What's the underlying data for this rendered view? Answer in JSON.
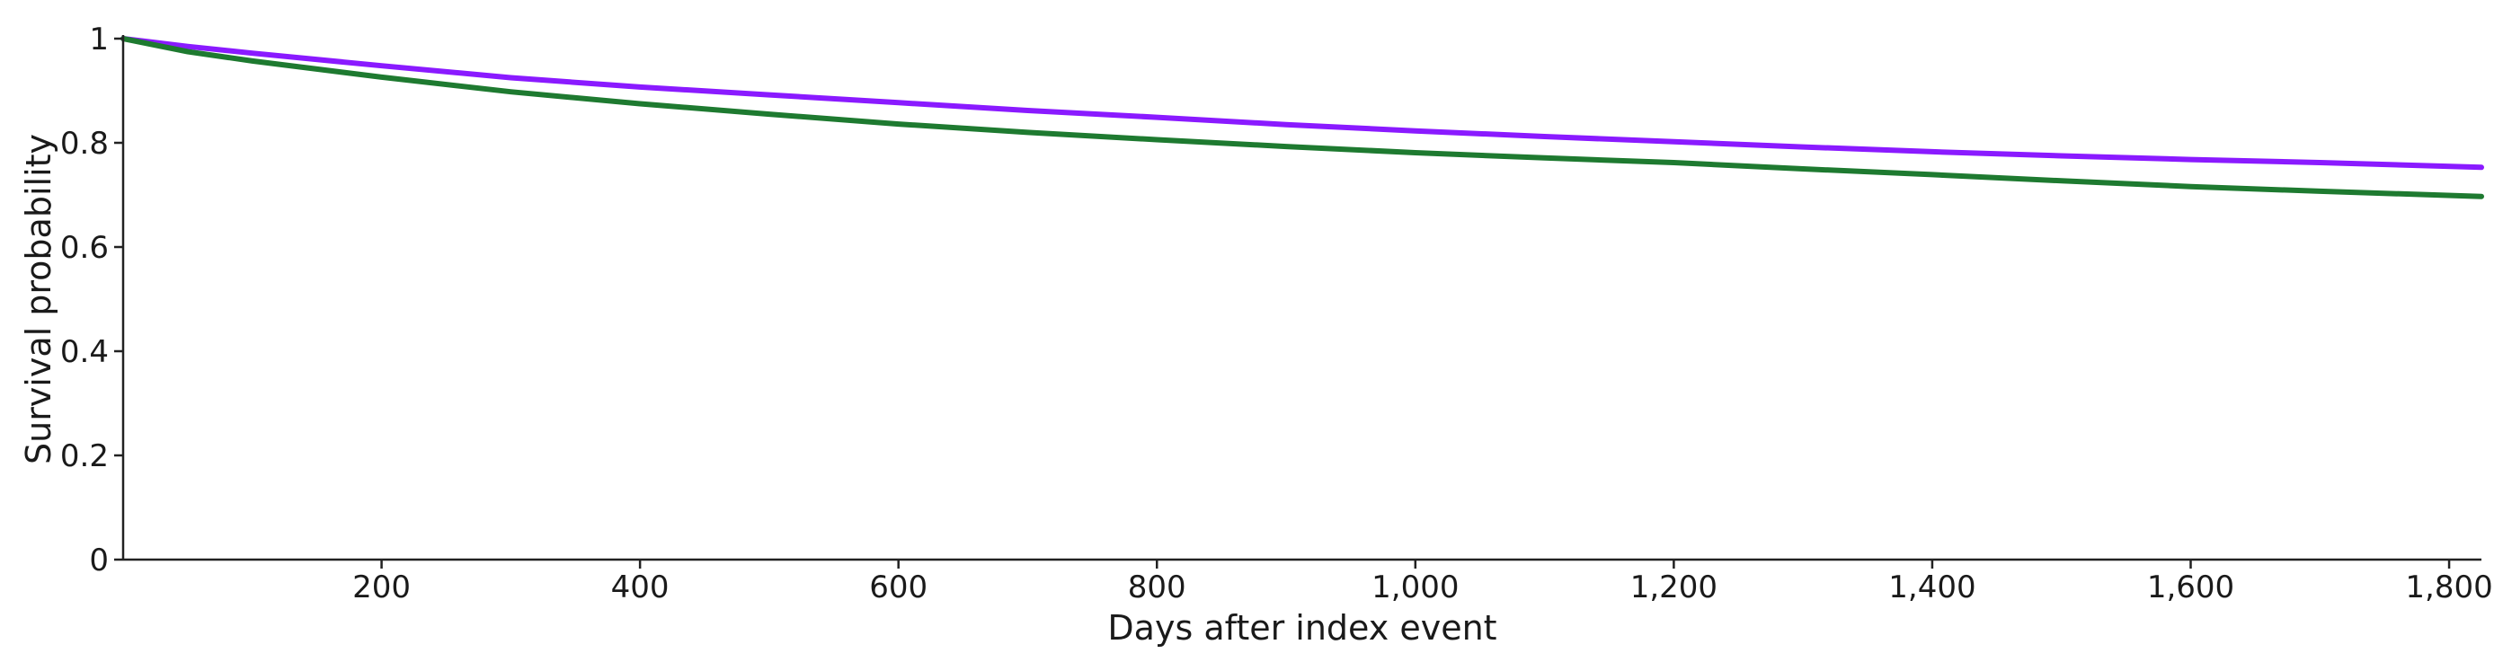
{
  "chart_data": {
    "type": "line",
    "title": "",
    "xlabel": "Days after index event",
    "ylabel": "Survival probability",
    "xlim": [
      0,
      1825
    ],
    "ylim": [
      0,
      1
    ],
    "x_ticks": [
      200,
      400,
      600,
      800,
      1000,
      1200,
      1400,
      1600,
      1800
    ],
    "x_tick_labels": [
      "200",
      "400",
      "600",
      "800",
      "1,000",
      "1,200",
      "1,400",
      "1,600",
      "1,800"
    ],
    "y_ticks": [
      0,
      0.2,
      0.4,
      0.6,
      0.8,
      1
    ],
    "y_tick_labels": [
      "0",
      "0.2",
      "0.4",
      "0.6",
      "0.8",
      "1"
    ],
    "grid": false,
    "legend": "none",
    "series": [
      {
        "color": "#8a1aff",
        "x": [
          0,
          50,
          100,
          200,
          300,
          400,
          500,
          600,
          700,
          800,
          900,
          1000,
          1100,
          1200,
          1300,
          1400,
          1500,
          1600,
          1700,
          1825
        ],
        "y": [
          1.0,
          0.985,
          0.972,
          0.948,
          0.925,
          0.907,
          0.892,
          0.877,
          0.862,
          0.849,
          0.835,
          0.823,
          0.812,
          0.802,
          0.792,
          0.783,
          0.775,
          0.768,
          0.762,
          0.753
        ]
      },
      {
        "color": "#1e7a30",
        "x": [
          0,
          50,
          100,
          200,
          300,
          400,
          500,
          600,
          700,
          800,
          900,
          1000,
          1100,
          1200,
          1300,
          1400,
          1500,
          1600,
          1700,
          1825
        ],
        "y": [
          1.0,
          0.975,
          0.957,
          0.926,
          0.898,
          0.875,
          0.855,
          0.836,
          0.82,
          0.806,
          0.793,
          0.781,
          0.771,
          0.762,
          0.75,
          0.739,
          0.727,
          0.716,
          0.707,
          0.697
        ]
      }
    ]
  }
}
